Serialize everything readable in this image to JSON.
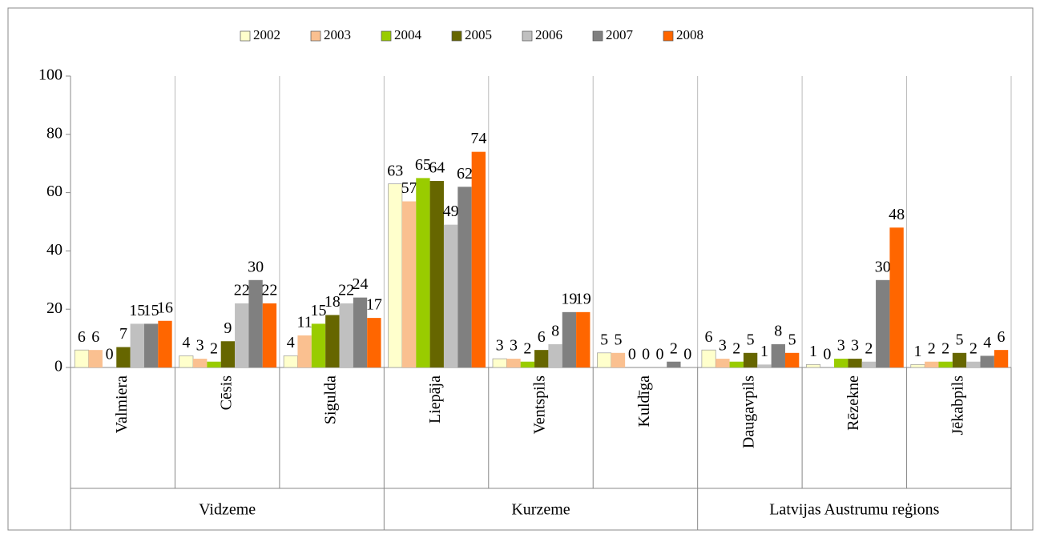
{
  "chart_data": {
    "type": "bar",
    "groups": [
      {
        "name": "Vidzeme",
        "categories": [
          "Valmiera",
          "Cēsis",
          "Sigulda"
        ]
      },
      {
        "name": "Kurzeme",
        "categories": [
          "Liepāja",
          "Ventspils",
          "Kuldīga"
        ]
      },
      {
        "name": "Latvijas Austrumu reģions",
        "categories": [
          "Daugavpils",
          "Rēzekne",
          "Jēkabpils"
        ]
      }
    ],
    "series": [
      {
        "name": "2002",
        "color": "#ffffcc",
        "values": [
          6,
          4,
          4,
          63,
          3,
          5,
          6,
          1,
          1
        ]
      },
      {
        "name": "2003",
        "color": "#fac090",
        "values": [
          6,
          3,
          11,
          57,
          3,
          5,
          3,
          0,
          2
        ]
      },
      {
        "name": "2004",
        "color": "#99cc00",
        "values": [
          0,
          2,
          15,
          65,
          2,
          0,
          2,
          3,
          2
        ]
      },
      {
        "name": "2005",
        "color": "#666600",
        "values": [
          7,
          9,
          18,
          64,
          6,
          0,
          5,
          3,
          5
        ]
      },
      {
        "name": "2006",
        "color": "#c0c0c0",
        "values": [
          15,
          22,
          22,
          49,
          8,
          0,
          1,
          2,
          2
        ]
      },
      {
        "name": "2007",
        "color": "#808080",
        "values": [
          15,
          30,
          24,
          62,
          19,
          2,
          8,
          30,
          4
        ]
      },
      {
        "name": "2008",
        "color": "#ff6600",
        "values": [
          16,
          22,
          17,
          74,
          19,
          0,
          5,
          48,
          6
        ]
      }
    ],
    "ylim": [
      0,
      100
    ],
    "yticks": [
      0,
      20,
      40,
      60,
      80,
      100
    ],
    "legend": "top"
  }
}
